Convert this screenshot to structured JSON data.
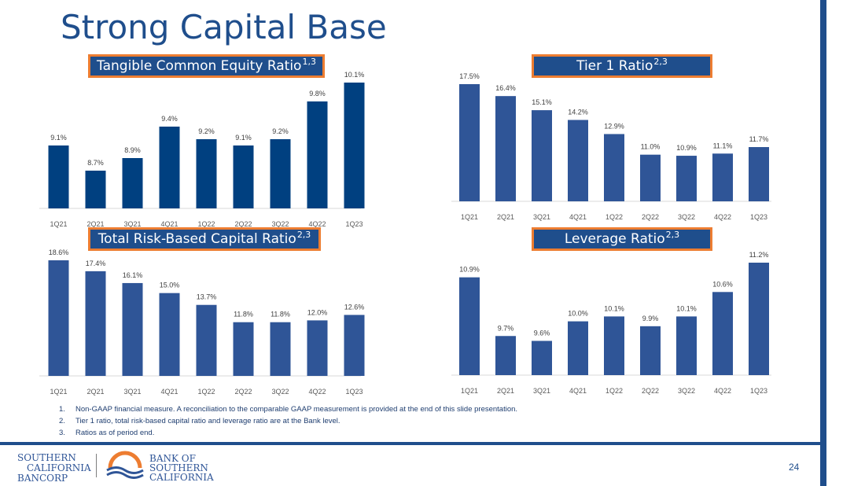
{
  "page": {
    "title": "Strong Capital Base",
    "page_number": "24"
  },
  "colors": {
    "brand_blue": "#1f4e8c",
    "bar_dark": "#004080",
    "bar_medium": "#2f5597",
    "accent_orange": "#ed7d31"
  },
  "charts": [
    {
      "label": "Tangible Common Equity Ratio",
      "superscript": "1,3"
    },
    {
      "label": "Tier 1 Ratio",
      "superscript": "2,3"
    },
    {
      "label": "Total Risk-Based Capital Ratio",
      "superscript": "2,3"
    },
    {
      "label": "Leverage Ratio",
      "superscript": "2,3"
    }
  ],
  "chart_data": [
    {
      "type": "bar",
      "title": "Tangible Common Equity Ratio",
      "categories": [
        "1Q21",
        "2Q21",
        "3Q21",
        "4Q21",
        "1Q22",
        "2Q22",
        "3Q22",
        "4Q22",
        "1Q23"
      ],
      "values": [
        9.1,
        8.7,
        8.9,
        9.4,
        9.2,
        9.1,
        9.2,
        9.8,
        10.1
      ],
      "labels": [
        "9.1%",
        "8.7%",
        "8.9%",
        "9.4%",
        "9.2%",
        "9.1%",
        "9.2%",
        "9.8%",
        "10.1%"
      ],
      "ylim": [
        8.1,
        10.1
      ],
      "bar_color": "#004080"
    },
    {
      "type": "bar",
      "title": "Tier 1 Ratio",
      "categories": [
        "1Q21",
        "2Q21",
        "3Q21",
        "4Q21",
        "1Q22",
        "2Q22",
        "3Q22",
        "4Q22",
        "1Q23"
      ],
      "values": [
        17.5,
        16.4,
        15.1,
        14.2,
        12.9,
        11.0,
        10.9,
        11.1,
        11.7
      ],
      "labels": [
        "17.5%",
        "16.4%",
        "15.1%",
        "14.2%",
        "12.9%",
        "11.0%",
        "10.9%",
        "11.1%",
        "11.7%"
      ],
      "ylim": [
        6.7,
        17.5
      ],
      "bar_color": "#2f5597"
    },
    {
      "type": "bar",
      "title": "Total Risk-Based Capital Ratio",
      "categories": [
        "1Q21",
        "2Q21",
        "3Q21",
        "4Q21",
        "1Q22",
        "2Q22",
        "3Q22",
        "4Q22",
        "1Q23"
      ],
      "values": [
        18.6,
        17.4,
        16.1,
        15.0,
        13.7,
        11.8,
        11.8,
        12.0,
        12.6
      ],
      "labels": [
        "18.6%",
        "17.4%",
        "16.1%",
        "15.0%",
        "13.7%",
        "11.8%",
        "11.8%",
        "12.0%",
        "12.6%"
      ],
      "ylim": [
        5.9,
        18.6
      ],
      "bar_color": "#2f5597"
    },
    {
      "type": "bar",
      "title": "Leverage Ratio",
      "categories": [
        "1Q21",
        "2Q21",
        "3Q21",
        "4Q21",
        "1Q22",
        "2Q22",
        "3Q22",
        "4Q22",
        "1Q23"
      ],
      "values": [
        10.9,
        9.7,
        9.6,
        10.0,
        10.1,
        9.9,
        10.1,
        10.6,
        11.2
      ],
      "labels": [
        "10.9%",
        "9.7%",
        "9.6%",
        "10.0%",
        "10.1%",
        "9.9%",
        "10.1%",
        "10.6%",
        "11.2%"
      ],
      "ylim": [
        8.9,
        11.2
      ],
      "bar_color": "#2f5597"
    }
  ],
  "footnotes": [
    {
      "num": "1.",
      "text": "Non-GAAP financial measure. A reconciliation to the comparable GAAP measurement is provided at the end of this slide presentation."
    },
    {
      "num": "2.",
      "text": "Tier 1 ratio, total risk-based capital ratio and leverage ratio are at the Bank level."
    },
    {
      "num": "3.",
      "text": "Ratios as of period end."
    }
  ],
  "logos": {
    "bancorp": [
      "SOUTHERN",
      "CALIFORNIA",
      "BANCORP"
    ],
    "bank": [
      "BANK OF",
      "SOUTHERN",
      "CALIFORNIA"
    ]
  }
}
